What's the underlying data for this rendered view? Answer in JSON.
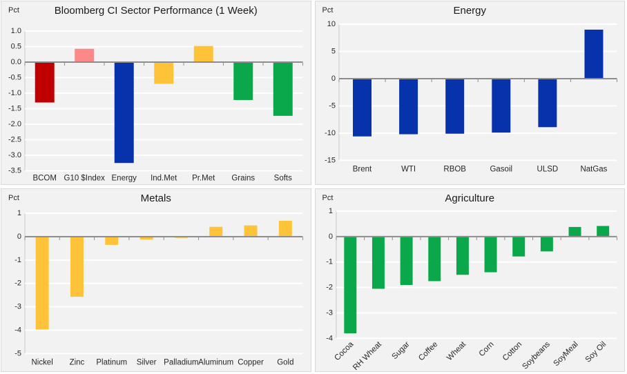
{
  "colors": {
    "panel_bg": "#f2f2f2",
    "panel_border": "#d9d9d9",
    "gridline": "#ffffff",
    "zero_line": "#8c8c8c",
    "axis_line": "#c8c8c8",
    "text": "#262626",
    "title_text": "#1a1a1a",
    "dark_red": "#c00000",
    "pink": "#fc8888",
    "blue": "#0633ab",
    "yellow": "#fec339",
    "green": "#0aa84a"
  },
  "chart_data": [
    {
      "type": "bar",
      "title": "Bloomberg CI Sector Performance (1 Week)",
      "ylabel": "Pct",
      "xlabel": "",
      "categories": [
        "BCOM",
        "G10 $Index",
        "Energy",
        "Ind.Met",
        "Pr.Met",
        "Grains",
        "Softs"
      ],
      "values": [
        -1.3,
        0.43,
        -3.25,
        -0.7,
        0.52,
        -1.22,
        -1.73
      ],
      "bar_colors": [
        "#c00000",
        "#fc8888",
        "#0633ab",
        "#fec339",
        "#fec339",
        "#0aa84a",
        "#0aa84a"
      ],
      "ylim": [
        -3.5,
        1.0
      ],
      "yticks": [
        "1.0",
        "0.5",
        "0.0",
        "-0.5",
        "-1.0",
        "-1.5",
        "-2.0",
        "-2.5",
        "-3.0",
        "-3.5"
      ],
      "grid": true,
      "legend": null,
      "xlabel_rotation": 0
    },
    {
      "type": "bar",
      "title": "Energy",
      "ylabel": "Pct",
      "xlabel": "",
      "categories": [
        "Brent",
        "WTI",
        "RBOB",
        "Gasoil",
        "ULSD",
        "NatGas"
      ],
      "values": [
        -10.6,
        -10.2,
        -10.1,
        -9.9,
        -8.9,
        9.0
      ],
      "color": "#0633ab",
      "ylim": [
        -15,
        10
      ],
      "yticks": [
        "10",
        "5",
        "0",
        "-5",
        "-10",
        "-15"
      ],
      "grid": true,
      "legend": null,
      "xlabel_rotation": 0
    },
    {
      "type": "bar",
      "title": "Metals",
      "ylabel": "Pct",
      "xlabel": "",
      "categories": [
        "Nickel",
        "Zinc",
        "Platinum",
        "Silver",
        "Palladium",
        "Aluminum",
        "Copper",
        "Gold"
      ],
      "values": [
        -3.97,
        -2.57,
        -0.35,
        -0.12,
        -0.05,
        0.42,
        0.48,
        0.68
      ],
      "color": "#fec339",
      "ylim": [
        -5,
        1
      ],
      "yticks": [
        "1",
        "0",
        "-1",
        "-2",
        "-3",
        "-4",
        "-5"
      ],
      "grid": true,
      "legend": null,
      "xlabel_rotation": 0
    },
    {
      "type": "bar",
      "title": "Agriculture",
      "ylabel": "Pct",
      "xlabel": "",
      "categories": [
        "Cocoa",
        "RH Wheat",
        "Sugar",
        "Coffee",
        "Wheat",
        "Corn",
        "Cotton",
        "Soybeans",
        "SoyMeal",
        "Soy Oil"
      ],
      "values": [
        -3.8,
        -2.05,
        -1.9,
        -1.75,
        -1.5,
        -1.4,
        -0.78,
        -0.58,
        0.38,
        0.42
      ],
      "color": "#0aa84a",
      "ylim": [
        -4,
        1
      ],
      "yticks": [
        "1",
        "0",
        "-1",
        "-2",
        "-3",
        "-4"
      ],
      "grid": true,
      "legend": null,
      "xlabel_rotation": 45
    }
  ]
}
